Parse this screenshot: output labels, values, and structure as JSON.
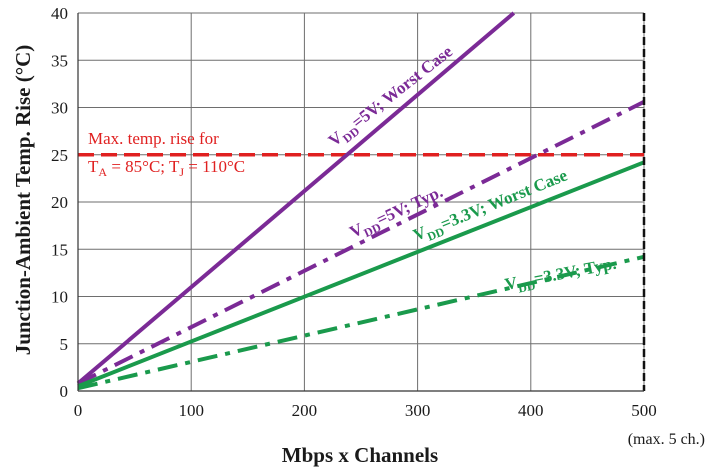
{
  "chart_data": {
    "type": "line",
    "xlabel": "Mbps x Channels",
    "ylabel": "Junction-Ambient Temp. Rise (°C)",
    "x_note": "(max. 5 ch.)",
    "xlim": [
      0,
      500
    ],
    "ylim": [
      0,
      40
    ],
    "x_ticks": [
      0,
      100,
      200,
      300,
      400,
      500
    ],
    "y_ticks": [
      0,
      5,
      10,
      15,
      20,
      25,
      30,
      35,
      40
    ],
    "grid": "both",
    "series": [
      {
        "label_main": "V",
        "label_sub": "DD",
        "label_rest": "=5V; Worst Case",
        "color": "#7b2a96",
        "style": "solid",
        "x": [
          0,
          385
        ],
        "y": [
          0.8,
          40
        ]
      },
      {
        "label_main": "V",
        "label_sub": "DD",
        "label_rest": "=5V; Typ.",
        "color": "#7b2a96",
        "style": "dashdot",
        "x": [
          0,
          500
        ],
        "y": [
          0.8,
          30.6
        ]
      },
      {
        "label_main": "V",
        "label_sub": "DD",
        "label_rest": "=3.3V; Worst Case",
        "color": "#1a9a4c",
        "style": "solid",
        "x": [
          0,
          500
        ],
        "y": [
          0.5,
          24.2
        ]
      },
      {
        "label_main": "V",
        "label_sub": "DD",
        "label_rest": "=3.3V; Typ.",
        "color": "#1a9a4c",
        "style": "dashdot",
        "x": [
          0,
          500
        ],
        "y": [
          0.3,
          14.2
        ]
      }
    ],
    "limit_line": {
      "y": 25,
      "color": "#e02020",
      "label_line1": "Max. temp. rise for",
      "label_line2_parts": [
        "T",
        "A",
        " = 85°C; T",
        "J",
        " = 110°C"
      ]
    },
    "vline": {
      "x": 500,
      "color": "#111111",
      "style": "dashed"
    }
  }
}
